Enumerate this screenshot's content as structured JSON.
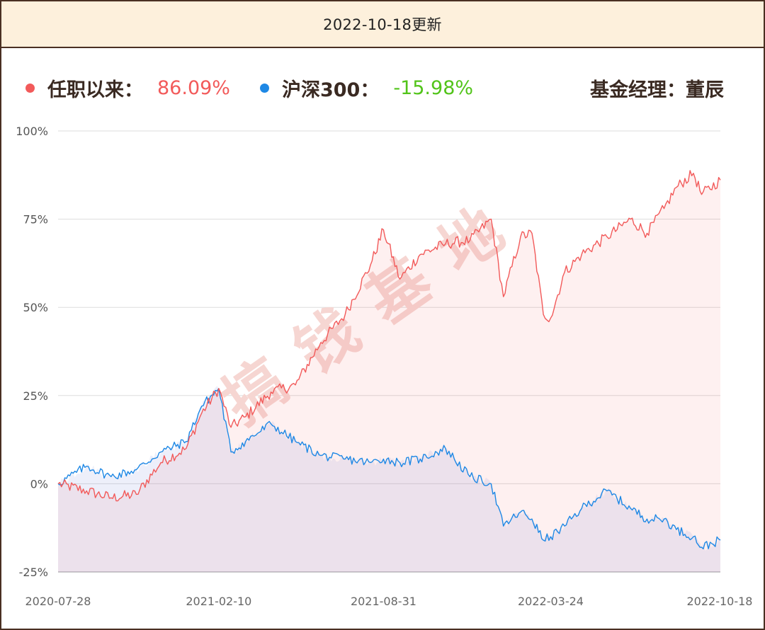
{
  "header": {
    "title": "2022-10-18更新"
  },
  "legend": {
    "fund": {
      "label": "任职以来：",
      "value": "86.09%",
      "color": "#f25a5a"
    },
    "index": {
      "label": "沪深300：",
      "value": "-15.98%",
      "color": "#1e88e5",
      "value_color": "#52c41a"
    },
    "manager": "基金经理：董辰"
  },
  "watermark": "搞钱基地",
  "chart_data": {
    "type": "area",
    "title": "",
    "xlabel": "",
    "ylabel": "",
    "ylim": [
      -25,
      100
    ],
    "yticks": [
      "100%",
      "75%",
      "50%",
      "25%",
      "0%",
      "-25%"
    ],
    "ytick_values": [
      100,
      75,
      50,
      25,
      0,
      -25
    ],
    "xtick_labels": [
      "2020-07-28",
      "2021-02-10",
      "2021-08-31",
      "2022-03-24",
      "2022-10-18"
    ],
    "grid": true,
    "legend_position": "top-left",
    "x": [
      "2020-07-28",
      "2020-09-01",
      "2020-10-01",
      "2020-11-01",
      "2020-12-01",
      "2021-01-01",
      "2021-01-20",
      "2021-02-10",
      "2021-02-25",
      "2021-03-15",
      "2021-04-15",
      "2021-05-15",
      "2021-06-15",
      "2021-07-15",
      "2021-08-15",
      "2021-08-31",
      "2021-09-20",
      "2021-10-15",
      "2021-11-15",
      "2021-12-15",
      "2022-01-10",
      "2022-01-25",
      "2022-02-15",
      "2022-03-01",
      "2022-03-15",
      "2022-03-24",
      "2022-04-10",
      "2022-05-01",
      "2022-06-01",
      "2022-06-30",
      "2022-07-20",
      "2022-08-10",
      "2022-08-25",
      "2022-09-15",
      "2022-09-25",
      "2022-10-18"
    ],
    "series": [
      {
        "name": "任职以来",
        "color": "#f25a5a",
        "values": [
          0,
          -2,
          -4,
          -3,
          6,
          10,
          20,
          27,
          16,
          19,
          26,
          28,
          40,
          48,
          62,
          72,
          58,
          65,
          68,
          69,
          75,
          53,
          70,
          71,
          48,
          47,
          60,
          65,
          70,
          75,
          71,
          78,
          84,
          88,
          82,
          86.09
        ]
      },
      {
        "name": "沪深300",
        "color": "#1e88e5",
        "values": [
          0,
          5,
          2,
          4,
          9,
          12,
          22,
          27,
          9,
          12,
          17,
          12,
          8,
          7,
          6,
          7,
          6,
          7,
          10,
          2,
          0,
          -12,
          -8,
          -10,
          -16,
          -15,
          -12,
          -7,
          -2,
          -7,
          -10,
          -10,
          -13,
          -15,
          -18,
          -15.98
        ]
      }
    ]
  }
}
